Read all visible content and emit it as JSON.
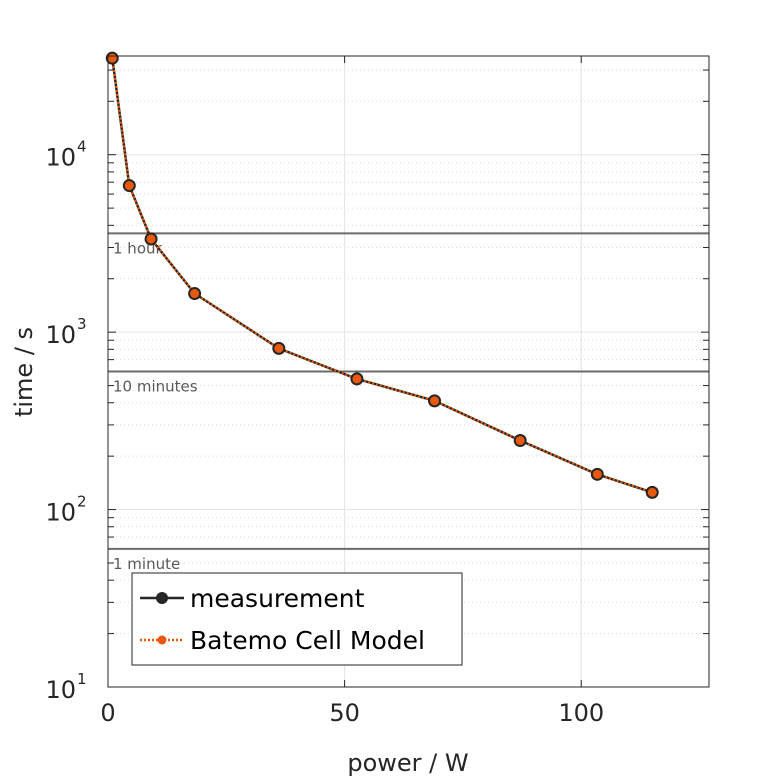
{
  "chart_data": {
    "type": "line",
    "xlabel": "power / W",
    "ylabel": "time / s",
    "xlim": [
      0,
      127
    ],
    "ylim": [
      10,
      36000
    ],
    "yscale": "log",
    "grid": true,
    "xticks": [
      {
        "value": 0,
        "label": "0"
      },
      {
        "value": 50,
        "label": "50"
      },
      {
        "value": 100,
        "label": "100"
      }
    ],
    "yticks": [
      {
        "value": 10,
        "base": "10",
        "exp": "1"
      },
      {
        "value": 100,
        "base": "10",
        "exp": "2"
      },
      {
        "value": 1000,
        "base": "10",
        "exp": "3"
      },
      {
        "value": 10000,
        "base": "10",
        "exp": "4"
      }
    ],
    "reference_lines": [
      {
        "value": 3600,
        "label": "1 hour"
      },
      {
        "value": 600,
        "label": "10 minutes"
      },
      {
        "value": 60,
        "label": "1 minute"
      }
    ],
    "legend_position": "bottom-left",
    "series": [
      {
        "name": "measurement",
        "color": "#262626",
        "style": "solid",
        "x": [
          0.9,
          4.5,
          9.1,
          18.3,
          36.1,
          52.6,
          69.0,
          87.1,
          103.4,
          115.0
        ],
        "y": [
          35000,
          6700,
          3350,
          1650,
          810,
          545,
          410,
          245,
          158,
          125
        ]
      },
      {
        "name": "Batemo Cell Model",
        "color": "#e8590c",
        "style": "dotted",
        "x": [
          0.9,
          4.5,
          9.1,
          18.3,
          36.1,
          52.6,
          69.0,
          87.1,
          103.4,
          115.0
        ],
        "y": [
          35000,
          6700,
          3350,
          1650,
          810,
          545,
          410,
          245,
          158,
          125
        ]
      }
    ]
  }
}
